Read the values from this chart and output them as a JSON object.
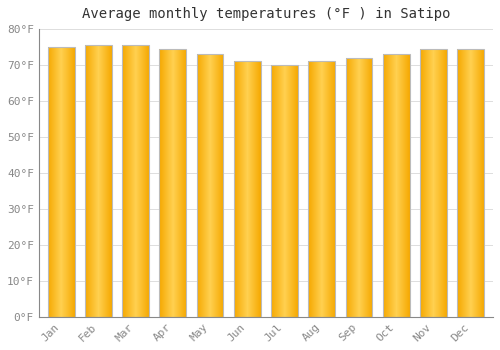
{
  "months": [
    "Jan",
    "Feb",
    "Mar",
    "Apr",
    "May",
    "Jun",
    "Jul",
    "Aug",
    "Sep",
    "Oct",
    "Nov",
    "Dec"
  ],
  "values": [
    75.0,
    75.5,
    75.5,
    74.5,
    73.0,
    71.0,
    70.0,
    71.0,
    72.0,
    73.0,
    74.5,
    74.5
  ],
  "title": "Average monthly temperatures (°F ) in Satipo",
  "ylim": [
    0,
    80
  ],
  "yticks": [
    0,
    10,
    20,
    30,
    40,
    50,
    60,
    70,
    80
  ],
  "ytick_labels": [
    "0°F",
    "10°F",
    "20°F",
    "30°F",
    "40°F",
    "50°F",
    "60°F",
    "70°F",
    "80°F"
  ],
  "background_color": "#FFFFFF",
  "plot_bg_color": "#FFFFFF",
  "grid_color": "#DDDDDD",
  "bar_color_center": "#FFD050",
  "bar_color_edge": "#F5A800",
  "bar_border_color": "#BBBBBB",
  "title_fontsize": 10,
  "tick_fontsize": 8,
  "bar_width": 0.72,
  "figsize": [
    5.0,
    3.5
  ],
  "dpi": 100
}
